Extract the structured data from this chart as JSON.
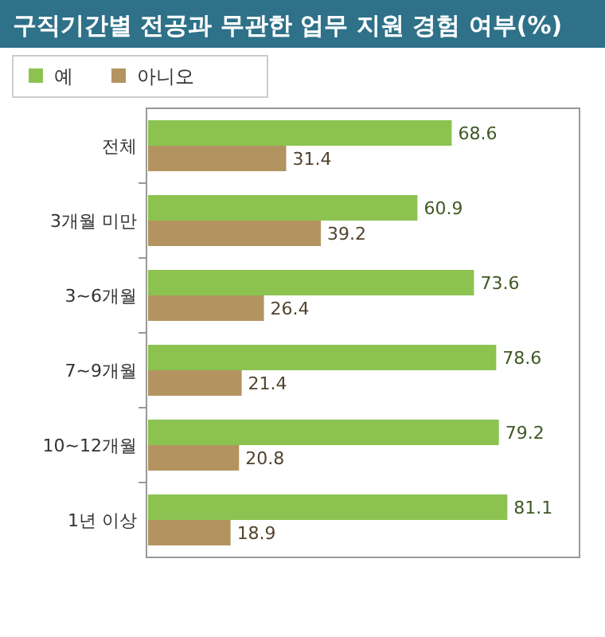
{
  "chart_data": {
    "type": "bar",
    "orientation": "horizontal",
    "title": "구직기간별 전공과 무관한 업무 지원 경험 여부(%)",
    "categories": [
      "전체",
      "3개월 미만",
      "3~6개월",
      "7~9개월",
      "10~12개월",
      "1년 이상"
    ],
    "series": [
      {
        "name": "예",
        "color": "#8cc350",
        "values": [
          68.6,
          60.9,
          73.6,
          78.6,
          79.2,
          81.1
        ]
      },
      {
        "name": "아니오",
        "color": "#b39461",
        "values": [
          31.4,
          39.2,
          26.4,
          21.4,
          20.8,
          18.9
        ]
      }
    ],
    "data_labels": true,
    "legend": "top left",
    "grid": false
  }
}
